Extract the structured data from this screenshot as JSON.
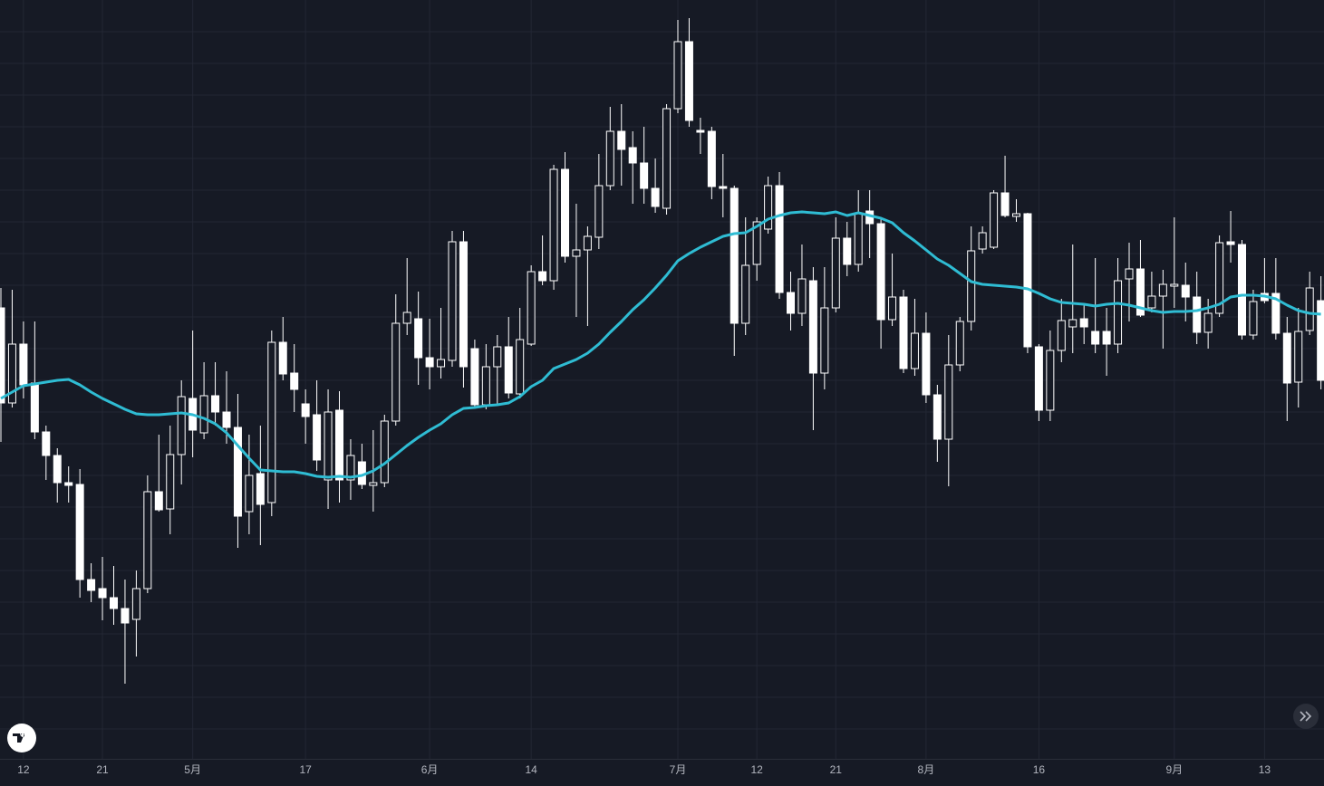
{
  "chart_data": {
    "type": "candlestick",
    "categories": [
      null,
      null,
      "12",
      null,
      null,
      null,
      null,
      null,
      null,
      "21",
      null,
      null,
      null,
      null,
      null,
      null,
      null,
      "5月",
      null,
      null,
      null,
      null,
      null,
      null,
      null,
      null,
      null,
      "17",
      null,
      null,
      null,
      null,
      null,
      null,
      null,
      null,
      null,
      null,
      "6月",
      null,
      null,
      null,
      null,
      null,
      null,
      null,
      null,
      "14",
      null,
      null,
      null,
      null,
      null,
      null,
      null,
      null,
      null,
      null,
      null,
      null,
      "7月",
      null,
      null,
      null,
      null,
      null,
      null,
      "12",
      null,
      null,
      null,
      null,
      null,
      null,
      "21",
      null,
      null,
      null,
      null,
      null,
      null,
      null,
      "8月",
      null,
      null,
      null,
      null,
      null,
      null,
      null,
      null,
      null,
      "16",
      null,
      null,
      null,
      null,
      null,
      null,
      null,
      null,
      null,
      null,
      null,
      "9月",
      null,
      null,
      null,
      null,
      null,
      null,
      null,
      "13",
      null,
      null,
      null,
      null,
      null
    ],
    "open": [
      500,
      395,
      460,
      417,
      363,
      337,
      307,
      305,
      200,
      190,
      180,
      168,
      156,
      190,
      297,
      278,
      338,
      400,
      362,
      403,
      385,
      368,
      275,
      317,
      285,
      462,
      428,
      394,
      382,
      310,
      387,
      310,
      330,
      304,
      307,
      375,
      483,
      488,
      445,
      435,
      442,
      573,
      455,
      393,
      435,
      457,
      405,
      460,
      540,
      530,
      653,
      557,
      564,
      578,
      635,
      695,
      677,
      660,
      632,
      610,
      720,
      794,
      696,
      695,
      634,
      632,
      483,
      548,
      587,
      635,
      517,
      494,
      530,
      428,
      500,
      577,
      548,
      607,
      593,
      487,
      512,
      433,
      472,
      404,
      355,
      437,
      485,
      565,
      567,
      627,
      601,
      604,
      457,
      387,
      453,
      479,
      488,
      474,
      474,
      460,
      532,
      543,
      500,
      513,
      524,
      525,
      512,
      473,
      494,
      573,
      570,
      470,
      516,
      516,
      472,
      418,
      475,
      508
    ],
    "high": [
      522,
      520,
      485,
      485,
      370,
      345,
      325,
      322,
      218,
      225,
      215,
      200,
      210,
      315,
      360,
      370,
      420,
      475,
      440,
      440,
      430,
      405,
      360,
      370,
      475,
      490,
      460,
      410,
      420,
      410,
      408,
      355,
      350,
      365,
      382,
      515,
      555,
      518,
      488,
      500,
      585,
      585,
      465,
      460,
      470,
      490,
      500,
      547,
      580,
      658,
      672,
      615,
      590,
      670,
      722,
      725,
      695,
      700,
      665,
      725,
      818,
      820,
      710,
      700,
      670,
      635,
      600,
      600,
      645,
      650,
      540,
      570,
      545,
      545,
      600,
      595,
      630,
      630,
      600,
      560,
      520,
      510,
      495,
      415,
      470,
      490,
      590,
      590,
      630,
      668,
      620,
      605,
      460,
      475,
      510,
      570,
      505,
      555,
      500,
      555,
      572,
      575,
      540,
      542,
      600,
      550,
      540,
      510,
      580,
      607,
      575,
      520,
      555,
      555,
      490,
      500,
      540,
      535
    ],
    "low": [
      352,
      390,
      400,
      355,
      310,
      285,
      285,
      180,
      175,
      155,
      150,
      85,
      115,
      185,
      275,
      250,
      305,
      335,
      355,
      370,
      350,
      235,
      250,
      238,
      270,
      420,
      385,
      350,
      320,
      278,
      285,
      288,
      300,
      275,
      302,
      370,
      470,
      415,
      410,
      422,
      435,
      412,
      390,
      388,
      392,
      400,
      400,
      458,
      525,
      520,
      550,
      490,
      480,
      565,
      630,
      635,
      615,
      615,
      605,
      603,
      715,
      700,
      670,
      620,
      600,
      447,
      470,
      530,
      582,
      510,
      475,
      480,
      365,
      410,
      495,
      535,
      540,
      555,
      455,
      480,
      428,
      425,
      395,
      330,
      303,
      430,
      475,
      560,
      565,
      600,
      595,
      450,
      375,
      375,
      440,
      450,
      460,
      450,
      425,
      450,
      485,
      490,
      495,
      455,
      500,
      485,
      460,
      455,
      490,
      550,
      465,
      465,
      505,
      465,
      375,
      390,
      470,
      410
    ],
    "close": [
      395,
      460,
      415,
      363,
      337,
      307,
      304,
      200,
      188,
      180,
      168,
      152,
      190,
      297,
      277,
      338,
      402,
      365,
      403,
      385,
      368,
      270,
      315,
      283,
      462,
      427,
      410,
      380,
      332,
      385,
      310,
      337,
      305,
      307,
      375,
      483,
      495,
      445,
      435,
      443,
      573,
      435,
      393,
      435,
      457,
      406,
      465,
      540,
      530,
      653,
      557,
      564,
      579,
      635,
      695,
      675,
      660,
      632,
      612,
      720,
      794,
      707,
      694,
      634,
      632,
      483,
      547,
      595,
      635,
      517,
      494,
      532,
      428,
      500,
      577,
      548,
      604,
      593,
      487,
      512,
      433,
      472,
      404,
      355,
      437,
      485,
      563,
      583,
      627,
      602,
      604,
      457,
      387,
      453,
      486,
      487,
      479,
      460,
      460,
      530,
      543,
      492,
      513,
      526,
      526,
      512,
      473,
      494,
      572,
      570,
      470,
      507,
      508,
      472,
      417,
      474,
      522,
      420
    ],
    "overlay": {
      "color": "#2fbcd3",
      "values": [
        400,
        407,
        414,
        416,
        418,
        420,
        421,
        415,
        407,
        400,
        394,
        388,
        383,
        382,
        382,
        383,
        384,
        382,
        378,
        372,
        362,
        348,
        334,
        321,
        320,
        319,
        319,
        317,
        314,
        313,
        314,
        313,
        315,
        320,
        328,
        338,
        348,
        357,
        365,
        372,
        382,
        389,
        390,
        392,
        393,
        395,
        402,
        413,
        420,
        433,
        438,
        443,
        450,
        460,
        473,
        485,
        498,
        509,
        522,
        536,
        552,
        560,
        567,
        573,
        579,
        582,
        583,
        590,
        598,
        602,
        605,
        606,
        605,
        604,
        606,
        602,
        605,
        602,
        599,
        594,
        583,
        574,
        564,
        554,
        547,
        538,
        529,
        526,
        525,
        524,
        523,
        521,
        516,
        510,
        506,
        505,
        504,
        502,
        504,
        505,
        503,
        500,
        497,
        495,
        496,
        496,
        497,
        500,
        504,
        512,
        514,
        514,
        513,
        510,
        503,
        497,
        494,
        493
      ]
    },
    "colors": {
      "up_body": "#161a25",
      "down_body": "#ffffff",
      "wick": "#ffffff"
    },
    "ylim": [
      0,
      840
    ],
    "yticks": [
      35,
      70,
      105,
      140,
      175,
      210,
      245,
      280,
      315,
      350,
      385,
      420,
      455,
      490,
      525,
      560,
      595,
      630,
      665,
      700,
      735,
      770,
      805
    ],
    "grid": true
  }
}
